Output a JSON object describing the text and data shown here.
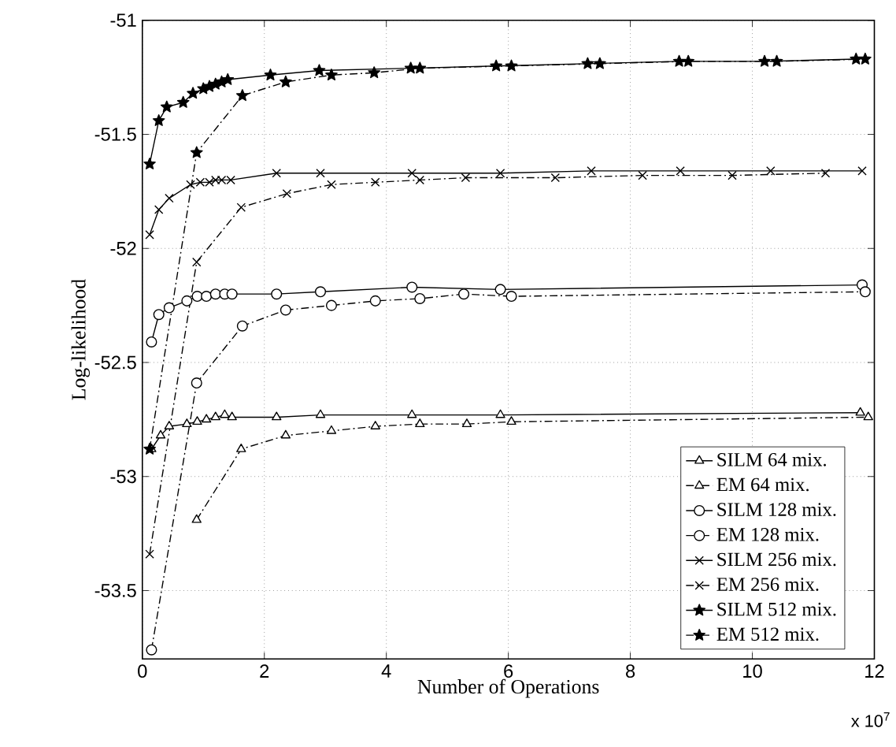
{
  "chart_data": {
    "type": "line",
    "xlabel": "Number of Operations",
    "ylabel": "Log-likelihood",
    "xlim": [
      0,
      12
    ],
    "ylim": [
      -53.8,
      -51
    ],
    "xticks": [
      0,
      2,
      4,
      6,
      8,
      10,
      12
    ],
    "yticks": [
      -53.5,
      -53,
      -52.5,
      -52,
      -51.5,
      -51
    ],
    "grid": true,
    "legend": "bottom right",
    "annotations": [
      "x 10$^{7}$"
    ],
    "series": [
      {
        "name": "SILM 64 mix.",
        "color": "#000000",
        "marker": "triangle",
        "line_style": "solid",
        "x": [
          0.15,
          0.3,
          0.44,
          0.73,
          0.9,
          1.05,
          1.2,
          1.35,
          1.47,
          2.2,
          2.92,
          4.42,
          5.87,
          11.77
        ],
        "values": [
          -52.88,
          -52.82,
          -52.78,
          -52.77,
          -52.76,
          -52.75,
          -52.74,
          -52.73,
          -52.74,
          -52.74,
          -52.73,
          -52.73,
          -52.73,
          -52.72
        ]
      },
      {
        "name": "EM 64 mix.",
        "color": "#000000",
        "marker": "triangle",
        "line_style": "dashed",
        "x": [
          0.89,
          1.62,
          2.35,
          3.1,
          3.82,
          4.55,
          5.32,
          6.05,
          11.9
        ],
        "values": [
          -53.19,
          -52.88,
          -52.82,
          -52.8,
          -52.78,
          -52.77,
          -52.77,
          -52.76,
          -52.74
        ]
      },
      {
        "name": "SILM 128 mix.",
        "color": "#000000",
        "marker": "circle",
        "line_style": "solid",
        "x": [
          0.15,
          0.27,
          0.44,
          0.73,
          0.9,
          1.05,
          1.2,
          1.35,
          1.47,
          2.2,
          2.92,
          4.42,
          5.87,
          11.8
        ],
        "values": [
          -52.41,
          -52.29,
          -52.26,
          -52.23,
          -52.21,
          -52.21,
          -52.2,
          -52.2,
          -52.2,
          -52.2,
          -52.19,
          -52.17,
          -52.18,
          -52.16
        ]
      },
      {
        "name": "EM 128 mix.",
        "color": "#000000",
        "marker": "circle",
        "line_style": "dashed",
        "x": [
          0.15,
          0.89,
          1.64,
          2.35,
          3.1,
          3.82,
          4.55,
          5.27,
          6.05,
          11.85
        ],
        "values": [
          -53.76,
          -52.59,
          -52.34,
          -52.27,
          -52.25,
          -52.23,
          -52.22,
          -52.2,
          -52.21,
          -52.19
        ]
      },
      {
        "name": "SILM 256 mix.",
        "color": "#000000",
        "marker": "cross",
        "line_style": "solid",
        "x": [
          0.12,
          0.27,
          0.44,
          0.79,
          0.95,
          1.1,
          1.2,
          1.3,
          1.45,
          2.2,
          2.92,
          4.42,
          5.87,
          7.36,
          8.82,
          10.3,
          11.8
        ],
        "values": [
          -51.94,
          -51.83,
          -51.78,
          -51.72,
          -51.71,
          -51.71,
          -51.7,
          -51.7,
          -51.7,
          -51.67,
          -51.67,
          -51.67,
          -51.67,
          -51.66,
          -51.66,
          -51.66,
          -51.66
        ]
      },
      {
        "name": "EM 256 mix.",
        "color": "#000000",
        "marker": "cross",
        "line_style": "dashed",
        "x": [
          0.12,
          0.89,
          1.62,
          2.37,
          3.1,
          3.82,
          4.55,
          5.3,
          6.77,
          8.2,
          9.67,
          11.2
        ],
        "values": [
          -53.34,
          -52.06,
          -51.82,
          -51.76,
          -51.72,
          -51.71,
          -51.7,
          -51.69,
          -51.69,
          -51.68,
          -51.68,
          -51.67
        ]
      },
      {
        "name": "SILM 512 mix.",
        "color": "#000000",
        "marker": "star",
        "line_style": "solid",
        "x": [
          0.12,
          0.27,
          0.4,
          0.67,
          0.83,
          1.0,
          1.1,
          1.2,
          1.3,
          1.4,
          2.1,
          2.9,
          4.4,
          5.8,
          7.3,
          8.8,
          10.2,
          11.7
        ],
        "values": [
          -51.63,
          -51.44,
          -51.38,
          -51.36,
          -51.32,
          -51.3,
          -51.29,
          -51.28,
          -51.27,
          -51.26,
          -51.24,
          -51.22,
          -51.21,
          -51.2,
          -51.19,
          -51.18,
          -51.18,
          -51.17
        ]
      },
      {
        "name": "EM 512 mix.",
        "color": "#000000",
        "marker": "star",
        "line_style": "dashed",
        "x": [
          0.12,
          0.89,
          1.64,
          2.35,
          3.1,
          3.8,
          4.55,
          6.05,
          7.5,
          8.95,
          10.4,
          11.85
        ],
        "values": [
          -52.88,
          -51.58,
          -51.33,
          -51.27,
          -51.24,
          -51.23,
          -51.21,
          -51.2,
          -51.19,
          -51.18,
          -51.18,
          -51.17
        ]
      }
    ]
  }
}
